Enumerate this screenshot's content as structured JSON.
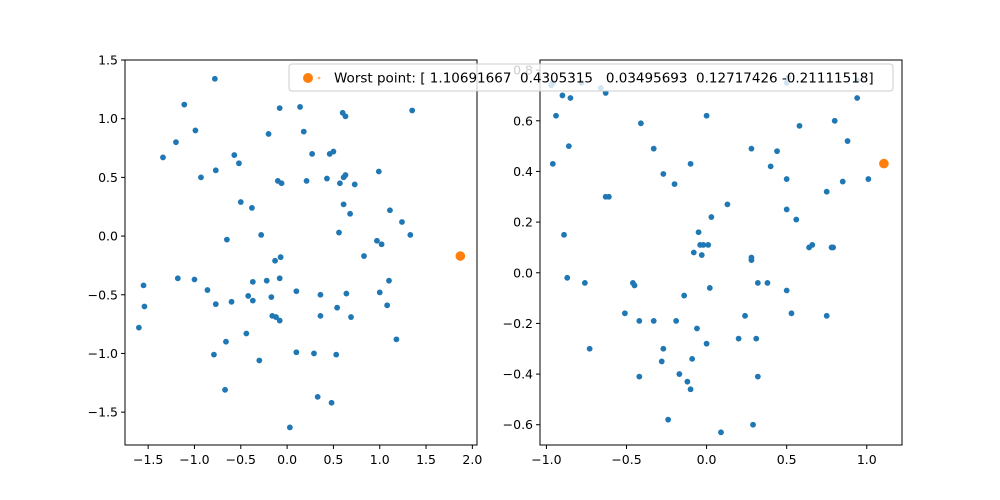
{
  "colors": {
    "scatter": "#1f77b4",
    "highlight": "#ff7f0e",
    "axes": "#000000",
    "legend_border": "#cccccc"
  },
  "legend": {
    "label": "Worst point: [ 1.10691667  0.4305315   0.03495693  0.12717426 -0.21111518]"
  },
  "chart_data": [
    {
      "type": "scatter",
      "xlim": [
        -1.75,
        2.05
      ],
      "ylim": [
        -1.78,
        1.5
      ],
      "xticks": [
        -1.5,
        -1.0,
        -0.5,
        0.0,
        0.5,
        1.0,
        1.5,
        2.0
      ],
      "xtick_labels": [
        "−1.5",
        "−1.0",
        "−0.5",
        "0.0",
        "0.5",
        "1.0",
        "1.5",
        "2.0"
      ],
      "yticks": [
        -1.5,
        -1.0,
        -0.5,
        0.0,
        0.5,
        1.0,
        1.5
      ],
      "ytick_labels": [
        "−1.5",
        "−1.0",
        "−0.5",
        "0.0",
        "0.5",
        "1.0",
        "1.5"
      ],
      "grid": false,
      "points": [
        [
          -0.78,
          1.34
        ],
        [
          -1.11,
          1.12
        ],
        [
          -1.2,
          0.8
        ],
        [
          -1.34,
          0.67
        ],
        [
          -0.99,
          0.9
        ],
        [
          -0.93,
          0.5
        ],
        [
          -0.77,
          0.56
        ],
        [
          -0.57,
          0.69
        ],
        [
          -0.52,
          0.62
        ],
        [
          -0.5,
          0.29
        ],
        [
          -0.38,
          0.24
        ],
        [
          -0.2,
          0.87
        ],
        [
          -0.08,
          1.09
        ],
        [
          0.14,
          1.1
        ],
        [
          0.18,
          0.89
        ],
        [
          0.27,
          0.7
        ],
        [
          -0.1,
          0.47
        ],
        [
          -0.06,
          0.45
        ],
        [
          0.21,
          0.47
        ],
        [
          0.43,
          0.49
        ],
        [
          0.46,
          0.7
        ],
        [
          0.5,
          0.72
        ],
        [
          0.57,
          0.45
        ],
        [
          0.61,
          0.5
        ],
        [
          0.63,
          0.52
        ],
        [
          0.73,
          0.44
        ],
        [
          0.6,
          1.05
        ],
        [
          0.63,
          1.02
        ],
        [
          0.99,
          0.55
        ],
        [
          1.35,
          1.07
        ],
        [
          0.61,
          0.27
        ],
        [
          0.68,
          0.19
        ],
        [
          0.56,
          0.03
        ],
        [
          1.11,
          0.22
        ],
        [
          1.24,
          0.12
        ],
        [
          1.33,
          0.01
        ],
        [
          0.97,
          -0.04
        ],
        [
          1.02,
          -0.07
        ],
        [
          0.83,
          -0.17
        ],
        [
          -0.65,
          -0.03
        ],
        [
          -0.28,
          0.01
        ],
        [
          -0.13,
          -0.21
        ],
        [
          -0.07,
          -0.18
        ],
        [
          -0.22,
          -0.38
        ],
        [
          -0.08,
          -0.36
        ],
        [
          -0.37,
          -0.39
        ],
        [
          -0.17,
          -0.52
        ],
        [
          -0.42,
          -0.51
        ],
        [
          -0.37,
          -0.55
        ],
        [
          -0.6,
          -0.56
        ],
        [
          -0.86,
          -0.46
        ],
        [
          -1.0,
          -0.37
        ],
        [
          -1.18,
          -0.36
        ],
        [
          -0.77,
          -0.58
        ],
        [
          -1.55,
          -0.42
        ],
        [
          -1.54,
          -0.6
        ],
        [
          -1.6,
          -0.78
        ],
        [
          -0.16,
          -0.68
        ],
        [
          -0.12,
          -0.69
        ],
        [
          -0.08,
          -0.72
        ],
        [
          0.1,
          -0.47
        ],
        [
          0.36,
          -0.5
        ],
        [
          0.36,
          -0.68
        ],
        [
          0.54,
          -0.61
        ],
        [
          0.64,
          -0.49
        ],
        [
          0.69,
          -0.69
        ],
        [
          1.0,
          -0.48
        ],
        [
          1.1,
          -0.38
        ],
        [
          1.08,
          -0.59
        ],
        [
          1.18,
          -0.88
        ],
        [
          -0.44,
          -0.83
        ],
        [
          -0.66,
          -0.9
        ],
        [
          -0.79,
          -1.01
        ],
        [
          -0.3,
          -1.06
        ],
        [
          0.1,
          -0.99
        ],
        [
          0.29,
          -1.0
        ],
        [
          0.53,
          -1.01
        ],
        [
          -0.67,
          -1.31
        ],
        [
          0.33,
          -1.37
        ],
        [
          0.48,
          -1.42
        ],
        [
          0.03,
          -1.63
        ]
      ],
      "highlight_point": [
        1.87,
        -0.17
      ]
    },
    {
      "type": "scatter",
      "xlim": [
        -1.04,
        1.22
      ],
      "ylim": [
        -0.68,
        0.84
      ],
      "xticks": [
        -1.0,
        -0.5,
        0.0,
        0.5,
        1.0
      ],
      "xtick_labels": [
        "−1.0",
        "−0.5",
        "0.0",
        "0.5",
        "1.0"
      ],
      "yticks": [
        -0.6,
        -0.4,
        -0.2,
        0.0,
        0.2,
        0.4,
        0.6,
        0.8
      ],
      "ytick_labels": [
        "−0.6",
        "−0.4",
        "−0.2",
        "0.0",
        "0.2",
        "0.4",
        "0.6",
        "0.8"
      ],
      "grid": false,
      "points": [
        [
          -0.97,
          0.74
        ],
        [
          -0.96,
          0.75
        ],
        [
          -0.9,
          0.7
        ],
        [
          -0.85,
          0.69
        ],
        [
          -0.78,
          0.75
        ],
        [
          -0.66,
          0.73
        ],
        [
          -0.63,
          0.71
        ],
        [
          -0.94,
          0.62
        ],
        [
          -0.41,
          0.59
        ],
        [
          -0.86,
          0.5
        ],
        [
          -0.96,
          0.43
        ],
        [
          -0.33,
          0.49
        ],
        [
          -0.63,
          0.3
        ],
        [
          -0.61,
          0.3
        ],
        [
          -0.27,
          0.39
        ],
        [
          -0.2,
          0.35
        ],
        [
          -0.1,
          0.43
        ],
        [
          0.0,
          0.62
        ],
        [
          -0.89,
          0.15
        ],
        [
          -0.87,
          -0.02
        ],
        [
          -0.76,
          -0.04
        ],
        [
          -0.46,
          -0.04
        ],
        [
          -0.45,
          -0.05
        ],
        [
          -0.51,
          -0.16
        ],
        [
          -0.42,
          -0.19
        ],
        [
          -0.33,
          -0.19
        ],
        [
          -0.19,
          -0.19
        ],
        [
          -0.73,
          -0.3
        ],
        [
          -0.27,
          -0.3
        ],
        [
          -0.28,
          -0.35
        ],
        [
          -0.42,
          -0.41
        ],
        [
          -0.17,
          -0.4
        ],
        [
          -0.12,
          -0.43
        ],
        [
          -0.1,
          -0.46
        ],
        [
          -0.14,
          -0.09
        ],
        [
          -0.08,
          0.08
        ],
        [
          -0.05,
          0.16
        ],
        [
          -0.04,
          0.11
        ],
        [
          -0.03,
          0.07
        ],
        [
          -0.02,
          0.11
        ],
        [
          0.01,
          0.11
        ],
        [
          0.03,
          0.22
        ],
        [
          0.13,
          0.27
        ],
        [
          0.02,
          -0.06
        ],
        [
          -0.06,
          -0.22
        ],
        [
          -0.09,
          -0.34
        ],
        [
          0.0,
          -0.28
        ],
        [
          -0.24,
          -0.58
        ],
        [
          0.09,
          -0.63
        ],
        [
          0.2,
          -0.26
        ],
        [
          0.24,
          -0.17
        ],
        [
          0.28,
          0.05
        ],
        [
          0.28,
          0.06
        ],
        [
          0.28,
          0.49
        ],
        [
          0.31,
          -0.26
        ],
        [
          0.32,
          -0.04
        ],
        [
          0.32,
          -0.41
        ],
        [
          0.29,
          -0.6
        ],
        [
          0.38,
          -0.04
        ],
        [
          0.4,
          0.42
        ],
        [
          0.44,
          0.48
        ],
        [
          0.5,
          0.37
        ],
        [
          0.5,
          0.25
        ],
        [
          0.5,
          0.75
        ],
        [
          0.51,
          0.77
        ],
        [
          0.53,
          -0.16
        ],
        [
          0.56,
          0.21
        ],
        [
          0.58,
          0.58
        ],
        [
          0.64,
          0.1
        ],
        [
          0.66,
          0.11
        ],
        [
          0.75,
          0.32
        ],
        [
          0.75,
          -0.17
        ],
        [
          0.78,
          0.1
        ],
        [
          0.79,
          0.1
        ],
        [
          0.8,
          0.6
        ],
        [
          0.85,
          0.36
        ],
        [
          0.88,
          0.52
        ],
        [
          0.94,
          0.76
        ],
        [
          0.94,
          0.69
        ],
        [
          1.01,
          0.37
        ],
        [
          0.5,
          -0.07
        ]
      ],
      "highlight_point": [
        1.107,
        0.431
      ]
    }
  ]
}
